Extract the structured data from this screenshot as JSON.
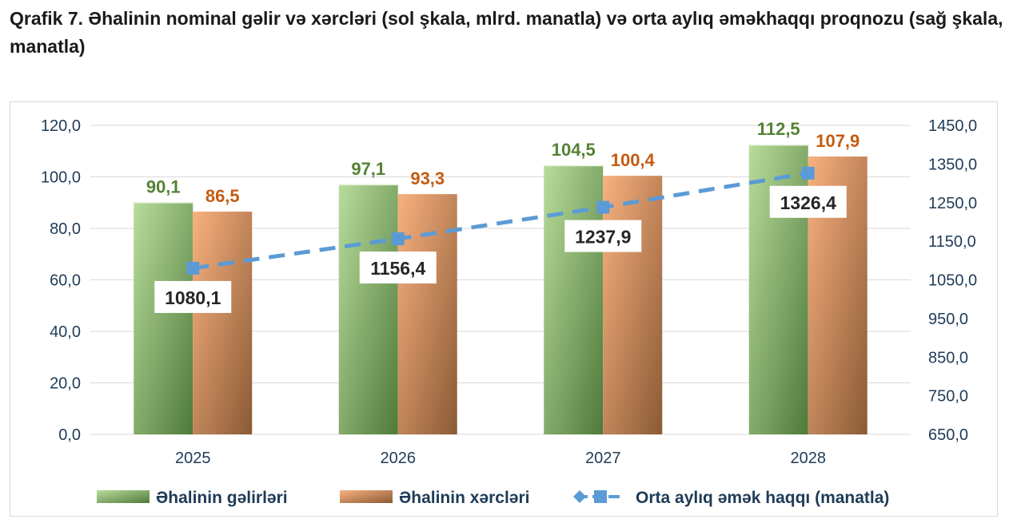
{
  "title": "Qrafik 7. Əhalinin nominal gəlir və xərcləri (sol şkala, mlrd. manatla) və orta aylıq əməkhaqqı proqnozu (sağ şkala, manatla)",
  "colors": {
    "income_light": "#b9dc9c",
    "income_dark": "#4f7a3a",
    "expense_light": "#f9b17f",
    "expense_dark": "#8a5a35",
    "income_label": "#548235",
    "expense_label": "#c55a11",
    "wage_line": "#5b9bd5",
    "axis_text": "#1f3b57",
    "grid": "#d9d9d9"
  },
  "chart_data": {
    "type": "bar",
    "categories": [
      "2025",
      "2026",
      "2027",
      "2028"
    ],
    "series": [
      {
        "name": "Əhalinin gəlirləri",
        "type": "bar",
        "axis": "left",
        "values": [
          90.1,
          97.1,
          104.5,
          112.5
        ],
        "labels": [
          "90,1",
          "97,1",
          "104,5",
          "112,5"
        ]
      },
      {
        "name": "Əhalinin xərcləri",
        "type": "bar",
        "axis": "left",
        "values": [
          86.5,
          93.3,
          100.4,
          107.9
        ],
        "labels": [
          "86,5",
          "93,3",
          "100,4",
          "107,9"
        ]
      },
      {
        "name": "Orta aylıq əmək haqqı (manatla)",
        "type": "line",
        "axis": "right",
        "style": "dashed",
        "values": [
          1080.1,
          1156.4,
          1237.9,
          1326.4
        ],
        "labels": [
          "1080,1",
          "1156,4",
          "1237,9",
          "1326,4"
        ]
      }
    ],
    "y_left": {
      "ylim": [
        0,
        120
      ],
      "ticks": [
        0,
        20,
        40,
        60,
        80,
        100,
        120
      ],
      "tick_labels": [
        "0,0",
        "20,0",
        "40,0",
        "60,0",
        "80,0",
        "100,0",
        "120,0"
      ]
    },
    "y_right": {
      "ylim": [
        650,
        1450
      ],
      "ticks": [
        650,
        750,
        850,
        950,
        1050,
        1150,
        1250,
        1350,
        1450
      ],
      "tick_labels": [
        "650,0",
        "750,0",
        "850,0",
        "950,0",
        "1050,0",
        "1150,0",
        "1250,0",
        "1350,0",
        "1450,0"
      ]
    },
    "grid": true,
    "legend": "bottom"
  }
}
